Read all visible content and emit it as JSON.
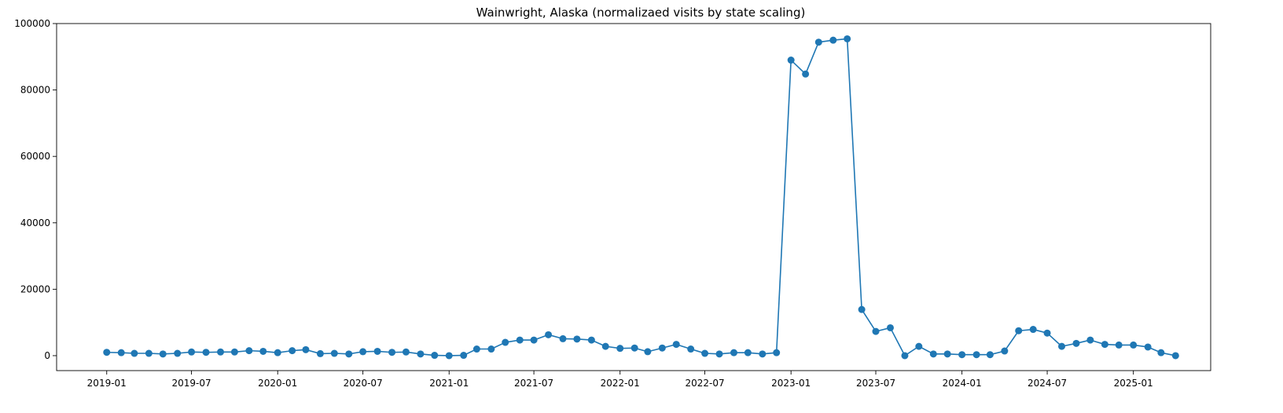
{
  "chart_data": {
    "type": "line",
    "title": "Wainwright, Alaska (normalizaed visits by state scaling)",
    "xlabel": "",
    "ylabel": "",
    "ylim": [
      -4500,
      100000
    ],
    "xlim": [
      "2018-09-16",
      "2025-06-15"
    ],
    "grid": false,
    "marker": "circle",
    "colors": {
      "series": "#1f77b4",
      "axis": "#000000",
      "background": "#ffffff"
    },
    "y_ticks": [
      {
        "value": 0,
        "label": "0"
      },
      {
        "value": 20000,
        "label": "20000"
      },
      {
        "value": 40000,
        "label": "40000"
      },
      {
        "value": 60000,
        "label": "60000"
      },
      {
        "value": 80000,
        "label": "80000"
      },
      {
        "value": 100000,
        "label": "100000"
      }
    ],
    "x_ticks": [
      {
        "value": "2019-01-01",
        "label": "2019-01"
      },
      {
        "value": "2019-07-01",
        "label": "2019-07"
      },
      {
        "value": "2020-01-01",
        "label": "2020-01"
      },
      {
        "value": "2020-07-01",
        "label": "2020-07"
      },
      {
        "value": "2021-01-01",
        "label": "2021-01"
      },
      {
        "value": "2021-07-01",
        "label": "2021-07"
      },
      {
        "value": "2022-01-01",
        "label": "2022-01"
      },
      {
        "value": "2022-07-01",
        "label": "2022-07"
      },
      {
        "value": "2023-01-01",
        "label": "2023-01"
      },
      {
        "value": "2023-07-01",
        "label": "2023-07"
      },
      {
        "value": "2024-01-01",
        "label": "2024-01"
      },
      {
        "value": "2024-07-01",
        "label": "2024-07"
      },
      {
        "value": "2025-01-01",
        "label": "2025-01"
      }
    ],
    "series": [
      {
        "x": [
          "2019-01-01",
          "2019-02-01",
          "2019-03-01",
          "2019-04-01",
          "2019-05-01",
          "2019-06-01",
          "2019-07-01",
          "2019-08-01",
          "2019-09-01",
          "2019-10-01",
          "2019-11-01",
          "2019-12-01",
          "2020-01-01",
          "2020-02-01",
          "2020-03-01",
          "2020-04-01",
          "2020-05-01",
          "2020-06-01",
          "2020-07-01",
          "2020-08-01",
          "2020-09-01",
          "2020-10-01",
          "2020-11-01",
          "2020-12-01",
          "2021-01-01",
          "2021-02-01",
          "2021-03-01",
          "2021-04-01",
          "2021-05-01",
          "2021-06-01",
          "2021-07-01",
          "2021-08-01",
          "2021-09-01",
          "2021-10-01",
          "2021-11-01",
          "2021-12-01",
          "2022-01-01",
          "2022-02-01",
          "2022-03-01",
          "2022-04-01",
          "2022-05-01",
          "2022-06-01",
          "2022-07-01",
          "2022-08-01",
          "2022-09-01",
          "2022-10-01",
          "2022-11-01",
          "2022-12-01",
          "2023-01-01",
          "2023-02-01",
          "2023-03-01",
          "2023-04-01",
          "2023-05-01",
          "2023-06-01",
          "2023-07-01",
          "2023-08-01",
          "2023-09-01",
          "2023-10-01",
          "2023-11-01",
          "2023-12-01",
          "2024-01-01",
          "2024-02-01",
          "2024-03-01",
          "2024-04-01",
          "2024-05-01",
          "2024-06-01",
          "2024-07-01",
          "2024-08-01",
          "2024-09-01",
          "2024-10-01",
          "2024-11-01",
          "2024-12-01",
          "2025-01-01",
          "2025-02-01",
          "2025-03-01",
          "2025-04-01"
        ],
        "values": [
          1000,
          900,
          700,
          700,
          500,
          700,
          1100,
          1000,
          1100,
          1100,
          1500,
          1300,
          900,
          1500,
          1800,
          600,
          700,
          500,
          1200,
          1300,
          1000,
          1100,
          500,
          100,
          0,
          100,
          2000,
          2000,
          4000,
          4700,
          4700,
          6300,
          5100,
          5000,
          4700,
          2800,
          2200,
          2300,
          1200,
          2300,
          3400,
          2000,
          700,
          500,
          900,
          900,
          500,
          900,
          89000,
          84800,
          94400,
          95000,
          95400,
          13900,
          7300,
          8400,
          0,
          2800,
          500,
          500,
          300,
          300,
          300,
          1400,
          7500,
          7900,
          6800,
          2800,
          3700,
          4700,
          3400,
          3200,
          3200,
          2600,
          900,
          0
        ]
      }
    ]
  }
}
